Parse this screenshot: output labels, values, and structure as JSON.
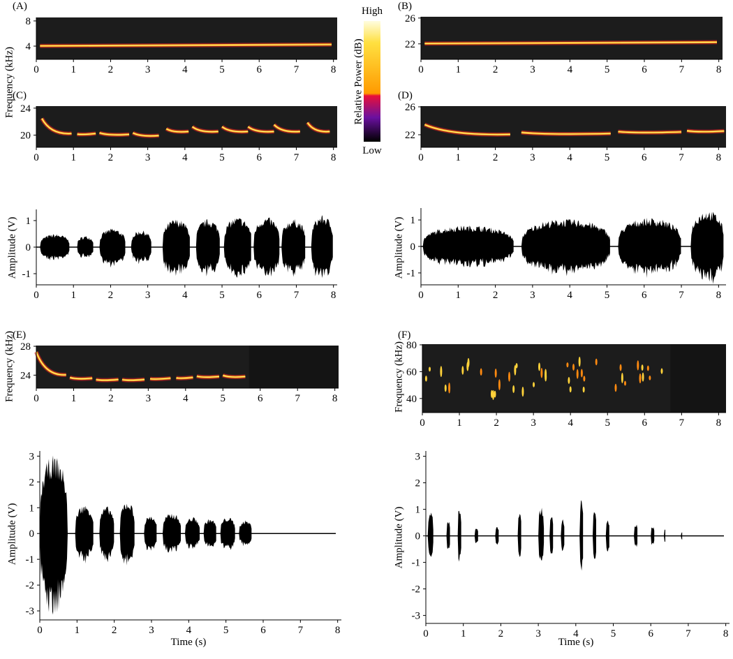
{
  "figure": {
    "colorbar": {
      "title": "Relative Power (dB)",
      "high": "High",
      "low": "Low"
    },
    "xlabel": "Time (s)",
    "panels": [
      {
        "kind": "spectrogram",
        "label": "(A)",
        "ylabel": "Frequency (kHz)",
        "xlim": [
          0,
          8.1
        ],
        "ylim": [
          1.9,
          8.55
        ],
        "xticks": [
          0,
          1,
          2,
          3,
          4,
          5,
          6,
          7,
          8
        ],
        "yticks": [
          4,
          8
        ]
      },
      {
        "kind": "spectrogram",
        "label": "(B)",
        "xlim": [
          0,
          8.1
        ],
        "ylim": [
          19.6,
          26.2
        ],
        "xticks": [
          0,
          1,
          2,
          3,
          4,
          5,
          6,
          7,
          8
        ],
        "yticks": [
          22,
          26
        ]
      },
      {
        "kind": "spectrogram",
        "label": "(C)",
        "xlim": [
          0,
          8.1
        ],
        "ylim": [
          18.2,
          24.3
        ],
        "xticks": [
          0,
          1,
          2,
          3,
          4,
          5,
          6,
          7,
          8
        ],
        "yticks": [
          20,
          24
        ]
      },
      {
        "kind": "spectrogram",
        "label": "(D)",
        "xlim": [
          0,
          8.2
        ],
        "ylim": [
          20.2,
          26.1
        ],
        "xticks": [
          0,
          1,
          2,
          3,
          4,
          5,
          6,
          7,
          8
        ],
        "yticks": [
          22,
          26
        ]
      },
      {
        "kind": "waveform",
        "ylabel": "Amplitude (V)",
        "xlim": [
          0,
          8.1
        ],
        "ylim": [
          -1.42,
          1.42
        ],
        "xticks": [
          0,
          1,
          2,
          3,
          4,
          5,
          6,
          7,
          8
        ],
        "yticks": [
          -1,
          0,
          1
        ]
      },
      {
        "kind": "waveform",
        "ylabel": "Amplitude (V)",
        "xlim": [
          0,
          8.2
        ],
        "ylim": [
          -1.45,
          1.45
        ],
        "xticks": [
          0,
          1,
          2,
          3,
          4,
          5,
          6,
          7,
          8
        ],
        "yticks": [
          -1,
          0,
          1
        ]
      },
      {
        "kind": "spectrogram",
        "label": "(E)",
        "ylabel": "Frequency (kHz)",
        "xlim": [
          0,
          8.1
        ],
        "ylim": [
          22.2,
          28.1
        ],
        "xticks": [
          0,
          1,
          2,
          3,
          4,
          5,
          6,
          7,
          8
        ],
        "yticks": [
          24,
          28
        ]
      },
      {
        "kind": "spectrogram",
        "label": "(F)",
        "ylabel": "Frequency (kHz)",
        "xlim": [
          0,
          8.2
        ],
        "ylim": [
          29.5,
          80.5
        ],
        "xticks": [
          0,
          1,
          2,
          3,
          4,
          5,
          6,
          7,
          8
        ],
        "yticks": [
          40,
          60,
          80
        ]
      },
      {
        "kind": "waveform",
        "ylabel": "Amplitude (V)",
        "xlim": [
          0,
          8.1
        ],
        "ylim": [
          -3.35,
          3.2
        ],
        "xticks": [
          0,
          1,
          2,
          3,
          4,
          5,
          6,
          7,
          8
        ],
        "yticks": [
          -3,
          -2,
          -1,
          0,
          1,
          2,
          3
        ]
      },
      {
        "kind": "waveform",
        "ylabel": "Amplitude (V)",
        "xlim": [
          0,
          8.1
        ],
        "ylim": [
          -3.3,
          3.2
        ],
        "xticks": [
          0,
          1,
          2,
          3,
          4,
          5,
          6,
          7,
          8
        ],
        "yticks": [
          -3,
          -2,
          -1,
          0,
          1,
          2,
          3
        ]
      }
    ]
  }
}
